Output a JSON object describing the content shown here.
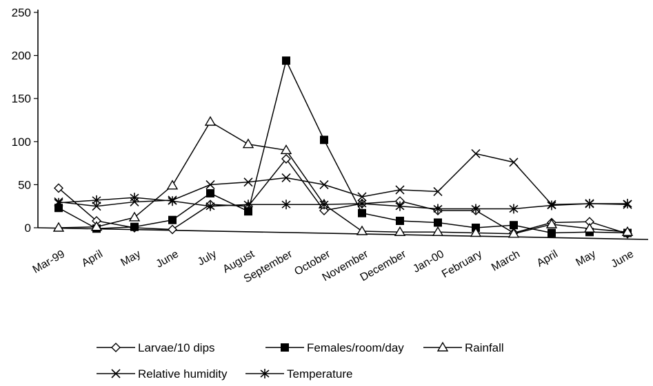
{
  "chart_data": {
    "type": "line",
    "categories": [
      "Mar-99",
      "April",
      "May",
      "June",
      "July",
      "August",
      "September",
      "October",
      "November",
      "December",
      "Jan-00",
      "February",
      "March",
      "April",
      "May",
      "June"
    ],
    "y_ticks": [
      "0",
      "50",
      "100",
      "150",
      "200",
      "250"
    ],
    "ylim": [
      0,
      250
    ],
    "grid": false,
    "legend_position": "bottom",
    "series": [
      {
        "name": "Larvae/10 dips",
        "marker": "diamond-open",
        "values": [
          46,
          8,
          0,
          -2,
          27,
          25,
          80,
          20,
          28,
          31,
          20,
          20,
          -6,
          6,
          7,
          -7
        ]
      },
      {
        "name": "Females/room/day",
        "marker": "square-filled",
        "values": [
          23,
          -1,
          1,
          9,
          40,
          19,
          194,
          102,
          17,
          8,
          6,
          0,
          3,
          -6,
          -5,
          -6
        ]
      },
      {
        "name": "Rainfall",
        "marker": "triangle-open",
        "values": [
          0,
          1,
          12,
          49,
          123,
          97,
          90,
          27,
          -4,
          -5,
          -5,
          -6,
          -7,
          4,
          -1,
          -5
        ]
      },
      {
        "name": "Relative humidity",
        "marker": "x",
        "values": [
          30,
          25,
          30,
          32,
          50,
          53,
          58,
          50,
          36,
          44,
          42,
          86,
          76,
          27,
          28,
          27
        ]
      },
      {
        "name": "Temperature",
        "marker": "asterisk",
        "values": [
          29,
          32,
          35,
          31,
          25,
          27,
          27,
          27,
          28,
          25,
          22,
          22,
          22,
          26,
          28,
          28
        ]
      }
    ]
  }
}
